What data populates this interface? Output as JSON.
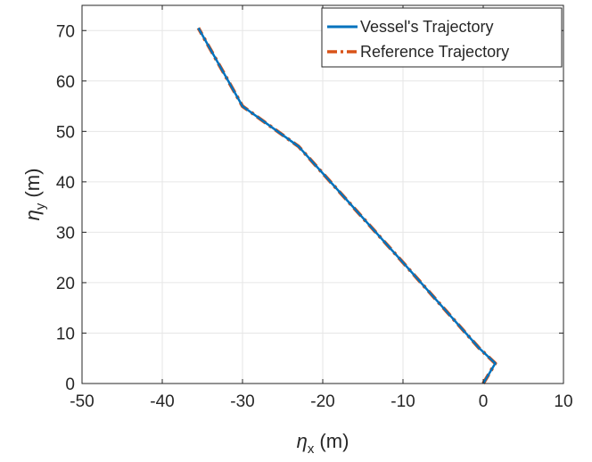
{
  "chart_data": {
    "type": "line",
    "title": "",
    "xlabel": {
      "symbol": "η",
      "sub": "x",
      "unit": " (m)"
    },
    "ylabel": {
      "symbol": "η",
      "sub": "y",
      "unit": " (m)"
    },
    "xlim": [
      -50,
      10
    ],
    "ylim": [
      0,
      75
    ],
    "xticks": [
      -50,
      -40,
      -30,
      -20,
      -10,
      0,
      10
    ],
    "yticks": [
      0,
      10,
      20,
      30,
      40,
      50,
      60,
      70
    ],
    "xtick_labels": [
      "-50",
      "-40",
      "-30",
      "-20",
      "-10",
      "0",
      "10"
    ],
    "ytick_labels": [
      "0",
      "10",
      "20",
      "30",
      "40",
      "50",
      "60",
      "70"
    ],
    "grid": true,
    "legend_position": "top-right",
    "series": [
      {
        "name": "Reference Trajectory",
        "color": "#D95319",
        "dash": "dashdot",
        "x": [
          0,
          1.5,
          -0.5,
          -10,
          -23,
          -30,
          -35.5
        ],
        "y": [
          0,
          4,
          7,
          24,
          47,
          55,
          70.5
        ]
      },
      {
        "name": "Vessel's Trajectory",
        "color": "#0072BD",
        "dash": "solid",
        "x": [
          0,
          1.5,
          -0.5,
          -10,
          -23,
          -30,
          -35.5
        ],
        "y": [
          0,
          4,
          7,
          24,
          47,
          55,
          70.5
        ]
      }
    ]
  }
}
